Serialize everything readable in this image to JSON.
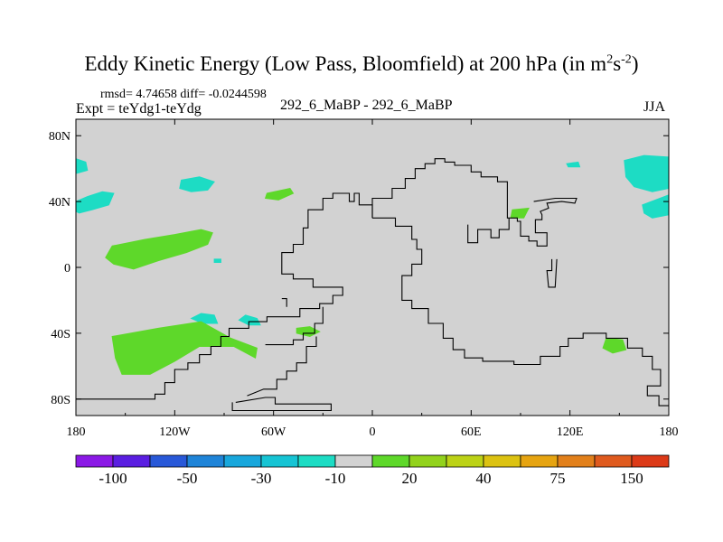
{
  "chart_data": {
    "type": "heatmap",
    "title_main": "Eddy Kinetic Energy (Low Pass, Bloomfield) at 200 hPa (in m",
    "title_exp1": "2",
    "title_mid": "s",
    "title_exp2": "-2",
    "title_end": ")",
    "stats": "rmsd= 4.74658 diff= -0.0244598",
    "left_label": "Expt = teYdg1-teYdg",
    "center_label": "292_6_MaBP - 292_6_MaBP",
    "right_label": "JJA",
    "x_range": [
      180,
      540
    ],
    "y_range": [
      -90,
      90
    ],
    "x_ticks": [
      {
        "value": 180,
        "label": "180"
      },
      {
        "value": 240,
        "label": "120W"
      },
      {
        "value": 300,
        "label": "60W"
      },
      {
        "value": 360,
        "label": "0"
      },
      {
        "value": 420,
        "label": "60E"
      },
      {
        "value": 480,
        "label": "120E"
      },
      {
        "value": 540,
        "label": "180"
      }
    ],
    "y_ticks": [
      {
        "value": 80,
        "label": "80N"
      },
      {
        "value": 40,
        "label": "40N"
      },
      {
        "value": 0,
        "label": "0"
      },
      {
        "value": -40,
        "label": "40S"
      },
      {
        "value": -80,
        "label": "80S"
      }
    ],
    "background_color": "#d2d2d2",
    "colorbar": {
      "colors": [
        "#8b19e6",
        "#5a1ee1",
        "#2858d8",
        "#1f84d8",
        "#18a7dc",
        "#16c4d4",
        "#1ddcc4",
        "#d2d2d2",
        "#5ed82a",
        "#92d21c",
        "#bcd216",
        "#dcc211",
        "#e6a411",
        "#e2801b",
        "#df5a1e",
        "#dc3a18"
      ],
      "labels": [
        {
          "boundary": 1,
          "text": "-100"
        },
        {
          "boundary": 3,
          "text": "-50"
        },
        {
          "boundary": 5,
          "text": "-30"
        },
        {
          "boundary": 7,
          "text": "-10"
        },
        {
          "boundary": 9,
          "text": "20"
        },
        {
          "boundary": 11,
          "text": "40"
        },
        {
          "boundary": 13,
          "text": "75"
        },
        {
          "boundary": 15,
          "text": "150"
        }
      ]
    },
    "anomaly_patches": [
      {
        "level": "-10 to 0",
        "color": "#1ddcc4",
        "points": [
          [
            180,
            66
          ],
          [
            186,
            64
          ],
          [
            187,
            59
          ],
          [
            180,
            57
          ]
        ]
      },
      {
        "level": "-10 to 0",
        "color": "#1ddcc4",
        "points": [
          [
            180,
            40
          ],
          [
            187,
            43
          ],
          [
            196,
            46
          ],
          [
            203,
            45
          ],
          [
            200,
            38
          ],
          [
            190,
            35
          ],
          [
            182,
            33
          ],
          [
            180,
            34
          ]
        ]
      },
      {
        "level": "-10 to 0",
        "color": "#1ddcc4",
        "points": [
          [
            244,
            53
          ],
          [
            255,
            55
          ],
          [
            264,
            52
          ],
          [
            260,
            47
          ],
          [
            250,
            46
          ],
          [
            243,
            48
          ]
        ]
      },
      {
        "level": "-10 to 0",
        "color": "#1ddcc4",
        "points": [
          [
            513,
            65
          ],
          [
            525,
            68
          ],
          [
            540,
            67
          ],
          [
            540,
            48
          ],
          [
            530,
            46
          ],
          [
            519,
            49
          ],
          [
            514,
            55
          ]
        ]
      },
      {
        "level": "-10 to 0",
        "color": "#1ddcc4",
        "points": [
          [
            524,
            38
          ],
          [
            540,
            44
          ],
          [
            540,
            32
          ],
          [
            530,
            30
          ],
          [
            525,
            33
          ]
        ]
      },
      {
        "level": "-10 to 0",
        "color": "#1ddcc4",
        "points": [
          [
            478,
            63
          ],
          [
            485,
            64
          ],
          [
            486,
            61
          ],
          [
            479,
            61
          ]
        ]
      },
      {
        "level": "-10 to 0",
        "color": "#1ddcc4",
        "points": [
          [
            256,
            -28
          ],
          [
            264,
            -29
          ],
          [
            266,
            -34
          ],
          [
            257,
            -34
          ],
          [
            250,
            -31
          ]
        ]
      },
      {
        "level": "-10 to 0",
        "color": "#1ddcc4",
        "points": [
          [
            283,
            -29
          ],
          [
            290,
            -31
          ],
          [
            292,
            -35
          ],
          [
            285,
            -35
          ],
          [
            279,
            -32
          ]
        ]
      },
      {
        "level": "-10 to 0",
        "color": "#1ddcc4",
        "points": [
          [
            264,
            5
          ],
          [
            268,
            5
          ],
          [
            268,
            3
          ],
          [
            264,
            3
          ]
        ]
      },
      {
        "level": "0 to 20",
        "color": "#5ed82a",
        "points": [
          [
            202,
            13
          ],
          [
            222,
            17
          ],
          [
            240,
            20
          ],
          [
            256,
            23
          ],
          [
            263,
            21
          ],
          [
            260,
            14
          ],
          [
            247,
            9
          ],
          [
            230,
            4
          ],
          [
            215,
            -1
          ],
          [
            203,
            2
          ],
          [
            198,
            6
          ]
        ]
      },
      {
        "level": "0 to 20",
        "color": "#5ed82a",
        "points": [
          [
            202,
            -42
          ],
          [
            230,
            -37
          ],
          [
            256,
            -33
          ],
          [
            274,
            -43
          ],
          [
            290,
            -49
          ],
          [
            289,
            -55
          ],
          [
            276,
            -48
          ],
          [
            255,
            -48
          ],
          [
            240,
            -57
          ],
          [
            225,
            -65
          ],
          [
            208,
            -65
          ],
          [
            204,
            -55
          ]
        ]
      },
      {
        "level": "0 to 20",
        "color": "#5ed82a",
        "points": [
          [
            314,
            -37
          ],
          [
            322,
            -36
          ],
          [
            328,
            -39
          ],
          [
            322,
            -42
          ],
          [
            314,
            -40
          ]
        ]
      },
      {
        "level": "0 to 20",
        "color": "#5ed82a",
        "points": [
          [
            296,
            45
          ],
          [
            310,
            48
          ],
          [
            312,
            45
          ],
          [
            303,
            41
          ],
          [
            295,
            42
          ]
        ]
      },
      {
        "level": "0 to 20",
        "color": "#5ed82a",
        "points": [
          [
            445,
            35
          ],
          [
            455,
            36
          ],
          [
            452,
            30
          ],
          [
            444,
            30
          ]
        ]
      },
      {
        "level": "0 to 20",
        "color": "#5ed82a",
        "points": [
          [
            502,
            -43
          ],
          [
            512,
            -44
          ],
          [
            514,
            -50
          ],
          [
            506,
            -52
          ],
          [
            500,
            -49
          ]
        ]
      }
    ],
    "coastlines": [
      [
        [
          180,
          -80
        ],
        [
          228,
          -80
        ],
        [
          228,
          -77
        ],
        [
          234,
          -77
        ],
        [
          234,
          -70
        ],
        [
          240,
          -70
        ],
        [
          240,
          -62
        ],
        [
          248,
          -62
        ],
        [
          248,
          -58
        ],
        [
          255,
          -58
        ],
        [
          255,
          -53
        ],
        [
          262,
          -53
        ],
        [
          262,
          -48
        ],
        [
          268,
          -48
        ],
        [
          268,
          -42
        ],
        [
          273,
          -42
        ],
        [
          273,
          -37
        ],
        [
          285,
          -37
        ],
        [
          285,
          -33
        ],
        [
          296,
          -33
        ],
        [
          296,
          -30
        ],
        [
          316,
          -30
        ],
        [
          316,
          -25
        ],
        [
          328,
          -25
        ],
        [
          328,
          -22
        ],
        [
          336,
          -22
        ],
        [
          336,
          -17
        ],
        [
          342,
          -17
        ],
        [
          342,
          -12
        ],
        [
          324,
          -12
        ],
        [
          324,
          -7
        ],
        [
          312,
          -7
        ],
        [
          312,
          -4
        ],
        [
          305,
          -4
        ],
        [
          305,
          9
        ],
        [
          312,
          9
        ],
        [
          312,
          14
        ],
        [
          318,
          14
        ],
        [
          318,
          24
        ],
        [
          321,
          24
        ],
        [
          321,
          35
        ],
        [
          330,
          35
        ],
        [
          330,
          42
        ],
        [
          336,
          42
        ],
        [
          336,
          45
        ],
        [
          346,
          45
        ],
        [
          346,
          40
        ],
        [
          349,
          40
        ],
        [
          349,
          45
        ],
        [
          352,
          45
        ],
        [
          352,
          38
        ],
        [
          360,
          38
        ],
        [
          360,
          30
        ]
      ],
      [
        [
          305,
          -19
        ],
        [
          308,
          -19
        ],
        [
          308,
          -24
        ]
      ],
      [
        [
          295,
          -47
        ],
        [
          312,
          -47
        ],
        [
          312,
          -44
        ],
        [
          318,
          -44
        ],
        [
          318,
          -40
        ],
        [
          325,
          -40
        ],
        [
          325,
          -34
        ],
        [
          330,
          -34
        ],
        [
          330,
          -24
        ]
      ],
      [
        [
          284,
          -78
        ],
        [
          294,
          -74
        ],
        [
          302,
          -74
        ],
        [
          302,
          -68
        ],
        [
          308,
          -68
        ],
        [
          308,
          -63
        ],
        [
          314,
          -63
        ],
        [
          314,
          -58
        ],
        [
          320,
          -58
        ],
        [
          320,
          -48
        ],
        [
          326,
          -48
        ],
        [
          326,
          -42
        ]
      ],
      [
        [
          277,
          -82
        ],
        [
          295,
          -79
        ],
        [
          301,
          -79
        ],
        [
          301,
          -83
        ],
        [
          335,
          -83
        ],
        [
          335,
          -87
        ],
        [
          275,
          -87
        ],
        [
          275,
          -82
        ]
      ],
      [
        [
          360,
          30
        ],
        [
          374,
          30
        ],
        [
          374,
          25
        ],
        [
          384,
          25
        ],
        [
          384,
          17
        ],
        [
          387,
          17
        ],
        [
          387,
          11
        ],
        [
          390,
          11
        ],
        [
          390,
          2
        ],
        [
          384,
          2
        ],
        [
          384,
          -5
        ],
        [
          378,
          -5
        ],
        [
          378,
          -20
        ],
        [
          384,
          -20
        ],
        [
          384,
          -25
        ],
        [
          394,
          -25
        ],
        [
          394,
          -34
        ],
        [
          403,
          -34
        ],
        [
          403,
          -43
        ],
        [
          409,
          -43
        ],
        [
          409,
          -50
        ],
        [
          416,
          -50
        ],
        [
          416,
          -55
        ],
        [
          427,
          -55
        ],
        [
          427,
          -57
        ],
        [
          446,
          -57
        ],
        [
          446,
          -59
        ],
        [
          462,
          -59
        ],
        [
          462,
          -54
        ],
        [
          474,
          -54
        ],
        [
          474,
          -48
        ],
        [
          479,
          -48
        ],
        [
          479,
          -43
        ],
        [
          488,
          -43
        ],
        [
          488,
          -40
        ],
        [
          502,
          -40
        ],
        [
          502,
          -43
        ],
        [
          515,
          -43
        ],
        [
          515,
          -49
        ],
        [
          524,
          -49
        ],
        [
          524,
          -54
        ],
        [
          530,
          -54
        ],
        [
          530,
          -62
        ],
        [
          535,
          -62
        ],
        [
          535,
          -72
        ],
        [
          527,
          -72
        ],
        [
          527,
          -78
        ],
        [
          534,
          -78
        ],
        [
          534,
          -84
        ],
        [
          540,
          -84
        ]
      ],
      [
        [
          360,
          30
        ],
        [
          360,
          42
        ],
        [
          372,
          42
        ],
        [
          372,
          48
        ],
        [
          380,
          48
        ],
        [
          380,
          54
        ],
        [
          386,
          54
        ],
        [
          386,
          60
        ],
        [
          392,
          60
        ],
        [
          392,
          63
        ],
        [
          398,
          63
        ],
        [
          398,
          66
        ],
        [
          404,
          66
        ],
        [
          404,
          64
        ],
        [
          410,
          64
        ],
        [
          410,
          62
        ],
        [
          420,
          62
        ],
        [
          420,
          58
        ],
        [
          426,
          58
        ],
        [
          426,
          55
        ],
        [
          436,
          55
        ],
        [
          436,
          52
        ],
        [
          442,
          52
        ],
        [
          442,
          30
        ],
        [
          448,
          30
        ],
        [
          448,
          28
        ],
        [
          450,
          28
        ],
        [
          450,
          19
        ],
        [
          455,
          19
        ],
        [
          455,
          16
        ],
        [
          460,
          16
        ],
        [
          460,
          13
        ],
        [
          466,
          13
        ],
        [
          466,
          21
        ],
        [
          459,
          21
        ],
        [
          459,
          29
        ],
        [
          463,
          29
        ],
        [
          463,
          32
        ],
        [
          462,
          34
        ],
        [
          467,
          36
        ],
        [
          466,
          39
        ],
        [
          475,
          40
        ],
        [
          483,
          39
        ],
        [
          484,
          42
        ],
        [
          471,
          42
        ],
        [
          458,
          40
        ]
      ],
      [
        [
          418,
          26
        ],
        [
          418,
          15
        ],
        [
          424,
          15
        ],
        [
          424,
          23
        ],
        [
          432,
          23
        ],
        [
          432,
          18
        ],
        [
          437,
          18
        ],
        [
          437,
          23
        ],
        [
          443,
          23
        ],
        [
          443,
          30
        ]
      ],
      [
        [
          472,
          5
        ],
        [
          471,
          -12
        ],
        [
          467,
          -12
        ],
        [
          466,
          -2
        ],
        [
          469,
          -2
        ],
        [
          469,
          5
        ]
      ]
    ]
  }
}
